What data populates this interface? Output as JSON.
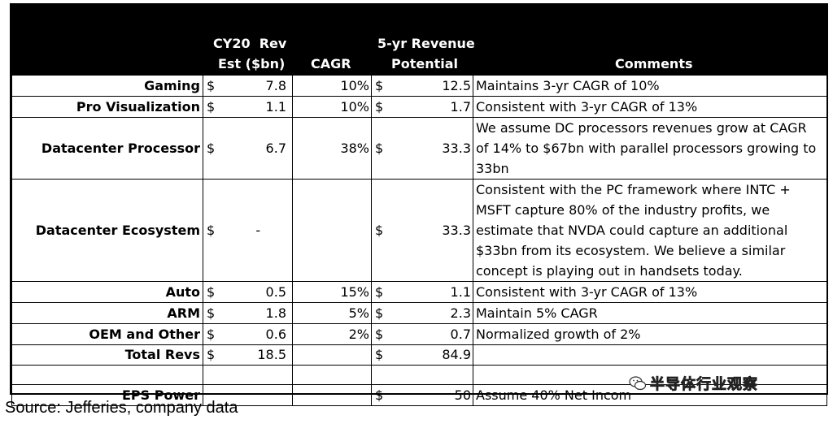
{
  "headers": {
    "rev_line1": "CY20  Rev",
    "rev_line2": "Est ($bn)",
    "cagr": "CAGR",
    "pot_line1": "5-yr Revenue",
    "pot_line2": "Potential",
    "comments": "Comments"
  },
  "rows": [
    {
      "label": "Gaming",
      "rev_sym": "$",
      "rev": "7.8",
      "cagr": "10%",
      "pot_sym": "$",
      "pot": "12.5",
      "comment": "Maintains 3-yr CAGR of 10%"
    },
    {
      "label": "Pro Visualization",
      "rev_sym": "$",
      "rev": "1.1",
      "cagr": "10%",
      "pot_sym": "$",
      "pot": "1.7",
      "comment": "Consistent with 3-yr CAGR of 13%"
    },
    {
      "label": "Datacenter Processor",
      "rev_sym": "$",
      "rev": "6.7",
      "cagr": "38%",
      "pot_sym": "$",
      "pot": "33.3",
      "comment": "We assume DC processors revenues grow at CAGR of 14% to $67bn with parallel processors growing to 33bn"
    },
    {
      "label": "Datacenter Ecosystem",
      "rev_sym": "$",
      "rev": "-",
      "cagr": "",
      "pot_sym": "$",
      "pot": "33.3",
      "comment": "Consistent with the PC framework where INTC + MSFT capture 80% of the industry profits, we estimate that NVDA could capture an additional $33bn from its ecosystem.  We believe a similar concept is playing out in handsets today."
    },
    {
      "label": "Auto",
      "rev_sym": "$",
      "rev": "0.5",
      "cagr": "15%",
      "pot_sym": "$",
      "pot": "1.1",
      "comment": "Consistent with 3-yr CAGR of 13%"
    },
    {
      "label": "ARM",
      "rev_sym": "$",
      "rev": "1.8",
      "cagr": "5%",
      "pot_sym": "$",
      "pot": "2.3",
      "comment": "Maintain 5% CAGR"
    },
    {
      "label": "OEM and Other",
      "rev_sym": "$",
      "rev": "0.6",
      "cagr": "2%",
      "pot_sym": "$",
      "pot": "0.7",
      "comment": "Normalized growth of 2%"
    },
    {
      "label": "Total Revs",
      "rev_sym": "$",
      "rev": "18.5",
      "cagr": "",
      "pot_sym": "$",
      "pot": "84.9",
      "comment": ""
    },
    {
      "label": "",
      "rev_sym": "",
      "rev": "",
      "cagr": "",
      "pot_sym": "",
      "pot": "",
      "comment": ""
    },
    {
      "label": "EPS Power",
      "rev_sym": "",
      "rev": "",
      "cagr": "",
      "pot_sym": "$",
      "pot": "50",
      "comment": "Assume 40% Net Incom"
    }
  ],
  "watermark": {
    "text": "半导体行业观察",
    "icon": "wechat-icon"
  },
  "source": "Source: Jefferies, company data"
}
